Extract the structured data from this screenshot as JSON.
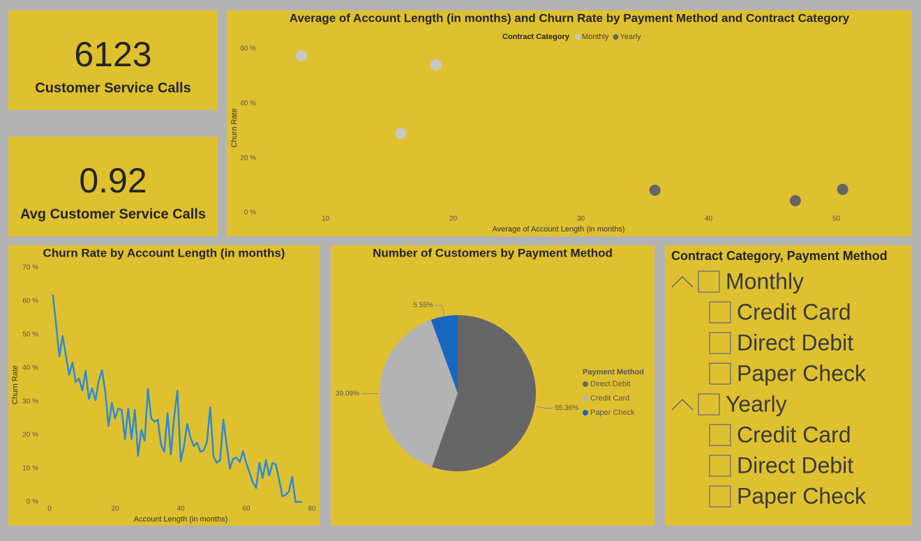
{
  "cards": [
    {
      "value": 6123,
      "label": "Customer Service Calls"
    },
    {
      "value": 0.92,
      "label": "Avg Customer Service Calls"
    }
  ],
  "chart_data": [
    {
      "type": "scatter",
      "title": "Average of Account Length (in months) and Churn Rate by Payment Method and Contract Category",
      "x_label": "Average of Account Length (in months)",
      "y_label": "Churn Rate",
      "legend_title": "Contract Category",
      "legend": "top",
      "grid": false,
      "series": [
        {
          "name": "Monthly",
          "color": "#c8c8c8",
          "x": [
            8.1,
            18.65,
            15.9
          ],
          "values": [
            57.4,
            54.1,
            29.0
          ]
        },
        {
          "name": "Yearly",
          "color": "#666666",
          "x": [
            35.8,
            46.8,
            50.5
          ],
          "values": [
            8.2,
            4.4,
            8.5
          ]
        }
      ],
      "xlim": [
        5,
        51.5
      ],
      "xticks": [
        10,
        20,
        30,
        40,
        50
      ],
      "ylim": [
        0,
        62
      ],
      "yticks": [
        {
          "value": 0,
          "label": "0 %"
        },
        {
          "value": 20,
          "label": "20 %"
        },
        {
          "value": 40,
          "label": "40 %"
        },
        {
          "value": 60,
          "label": "60 %"
        }
      ]
    },
    {
      "type": "line",
      "title": "Churn Rate by Account Length (in months)",
      "x_label": "Account Length (in months)",
      "y_label": "Churn Rate",
      "color": "#2a8ad8",
      "grid": false,
      "x": [
        1,
        2,
        3,
        4,
        5,
        6,
        7,
        8,
        9,
        10,
        11,
        12,
        13,
        14,
        15,
        16,
        17,
        18,
        19,
        20,
        21,
        22,
        23,
        24,
        25,
        26,
        27,
        28,
        29,
        30,
        31,
        32,
        33,
        34,
        35,
        36,
        37,
        38,
        39,
        40,
        41,
        42,
        43,
        44,
        45,
        46,
        47,
        48,
        49,
        50,
        51,
        52,
        53,
        54,
        55,
        56,
        57,
        58,
        59,
        60,
        61,
        62,
        63,
        64,
        65,
        66,
        67,
        68,
        69,
        70,
        71,
        72,
        73,
        74,
        75,
        76,
        77
      ],
      "values": [
        62,
        53,
        43.5,
        49.6,
        43.8,
        38,
        41.7,
        35.8,
        36.9,
        33.3,
        39.2,
        30.8,
        34,
        30.4,
        36.2,
        39.4,
        32.9,
        22.7,
        29.6,
        25,
        27.9,
        27.5,
        18.8,
        27.9,
        18.8,
        27.5,
        13.8,
        21.5,
        18.3,
        33.8,
        25,
        24,
        24.6,
        17.1,
        15,
        26.5,
        14.2,
        25.4,
        33.3,
        12.1,
        16.7,
        23.3,
        19.2,
        16.7,
        17.7,
        15,
        15.4,
        17.9,
        28.3,
        13.5,
        11.7,
        12.5,
        24.6,
        17.1,
        10,
        12.9,
        13.3,
        11.9,
        15.2,
        11.5,
        8.8,
        5.8,
        4.2,
        11.7,
        7.1,
        12.5,
        7.9,
        11.7,
        11.2,
        6.7,
        1.7,
        2.1,
        3.1,
        7.5,
        0,
        0,
        0
      ],
      "xlim": [
        0,
        80
      ],
      "xticks": [
        0,
        20,
        40,
        60,
        80
      ],
      "ylim": [
        0,
        70
      ],
      "yticks": [
        {
          "value": 0,
          "label": "0 %"
        },
        {
          "value": 10,
          "label": "10 %"
        },
        {
          "value": 20,
          "label": "20 %"
        },
        {
          "value": 30,
          "label": "30 %"
        },
        {
          "value": 40,
          "label": "40 %"
        },
        {
          "value": 50,
          "label": "50 %"
        },
        {
          "value": 60,
          "label": "60 %"
        },
        {
          "value": 70,
          "label": "70 %"
        }
      ]
    },
    {
      "type": "pie",
      "title": "Number of Customers by Payment Method",
      "legend_title": "Payment Method",
      "legend": "right",
      "categories": [
        "Direct Debit",
        "Credit Card",
        "Paper Check"
      ],
      "values": [
        55.36,
        39.09,
        5.55
      ],
      "value_labels": [
        "55.36%",
        "39.09%",
        "5.55%"
      ],
      "colors": [
        "#666666",
        "#b3b3b3",
        "#1766c0"
      ]
    }
  ],
  "slicer": {
    "title": "Contract Category, Payment Method",
    "groups": [
      {
        "label": "Monthly",
        "items": [
          "Credit Card",
          "Direct Debit",
          "Paper Check"
        ]
      },
      {
        "label": "Yearly",
        "items": [
          "Credit Card",
          "Direct Debit",
          "Paper Check"
        ]
      }
    ]
  }
}
